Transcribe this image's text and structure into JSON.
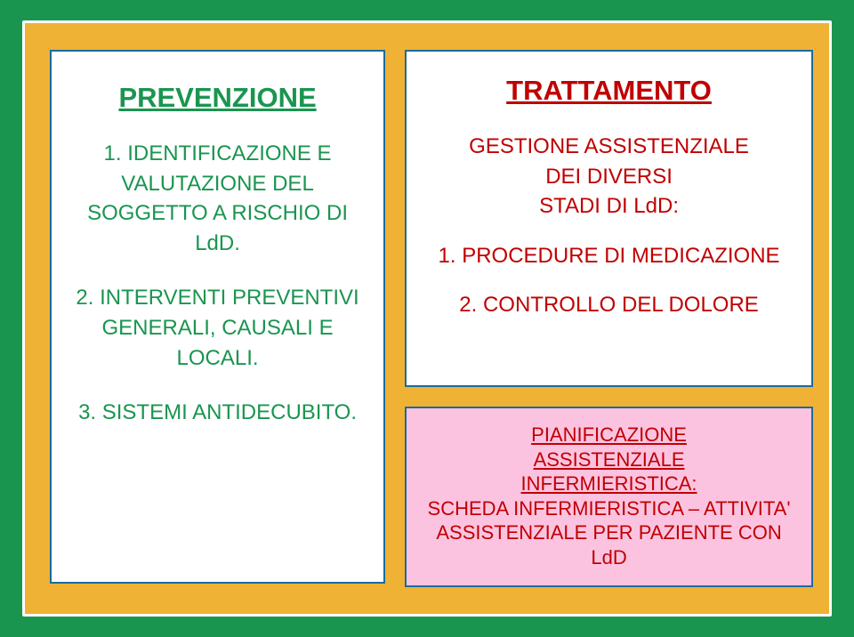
{
  "colors": {
    "slide_bg": "#efb234",
    "outer_bg": "#1a9550",
    "outer_border": "#ffffff",
    "card_bg": "#ffffff",
    "card_border": "#1b6a9e",
    "pian_bg": "#fcc3e1",
    "green_text": "#1a9550",
    "red_text": "#c00000"
  },
  "typography": {
    "family": "Verdana",
    "title_size_pt": 24,
    "body_size_pt": 18,
    "pian_size_pt": 16
  },
  "left": {
    "title": "PREVENZIONE",
    "items": [
      "1. IDENTIFICAZIONE E VALUTAZIONE DEL SOGGETTO A RISCHIO DI LdD.",
      "2. INTERVENTI PREVENTIVI GENERALI, CAUSALI E LOCALI.",
      "3. SISTEMI ANTIDECUBITO."
    ]
  },
  "right_top": {
    "title": "TRATTAMENTO",
    "intro_l1": "GESTIONE ASSISTENZIALE",
    "intro_l2": "DEI DIVERSI",
    "intro_l3": "STADI DI LdD:",
    "item1": "1. PROCEDURE DI MEDICAZIONE",
    "item2": "2. CONTROLLO DEL DOLORE"
  },
  "right_bottom": {
    "l1": "PIANIFICAZIONE",
    "l2": "ASSISTENZIALE",
    "l3": "INFERMIERISTICA:",
    "l4": "SCHEDA INFERMIERISTICA – ATTIVITA' ASSISTENZIALE PER PAZIENTE CON LdD"
  }
}
